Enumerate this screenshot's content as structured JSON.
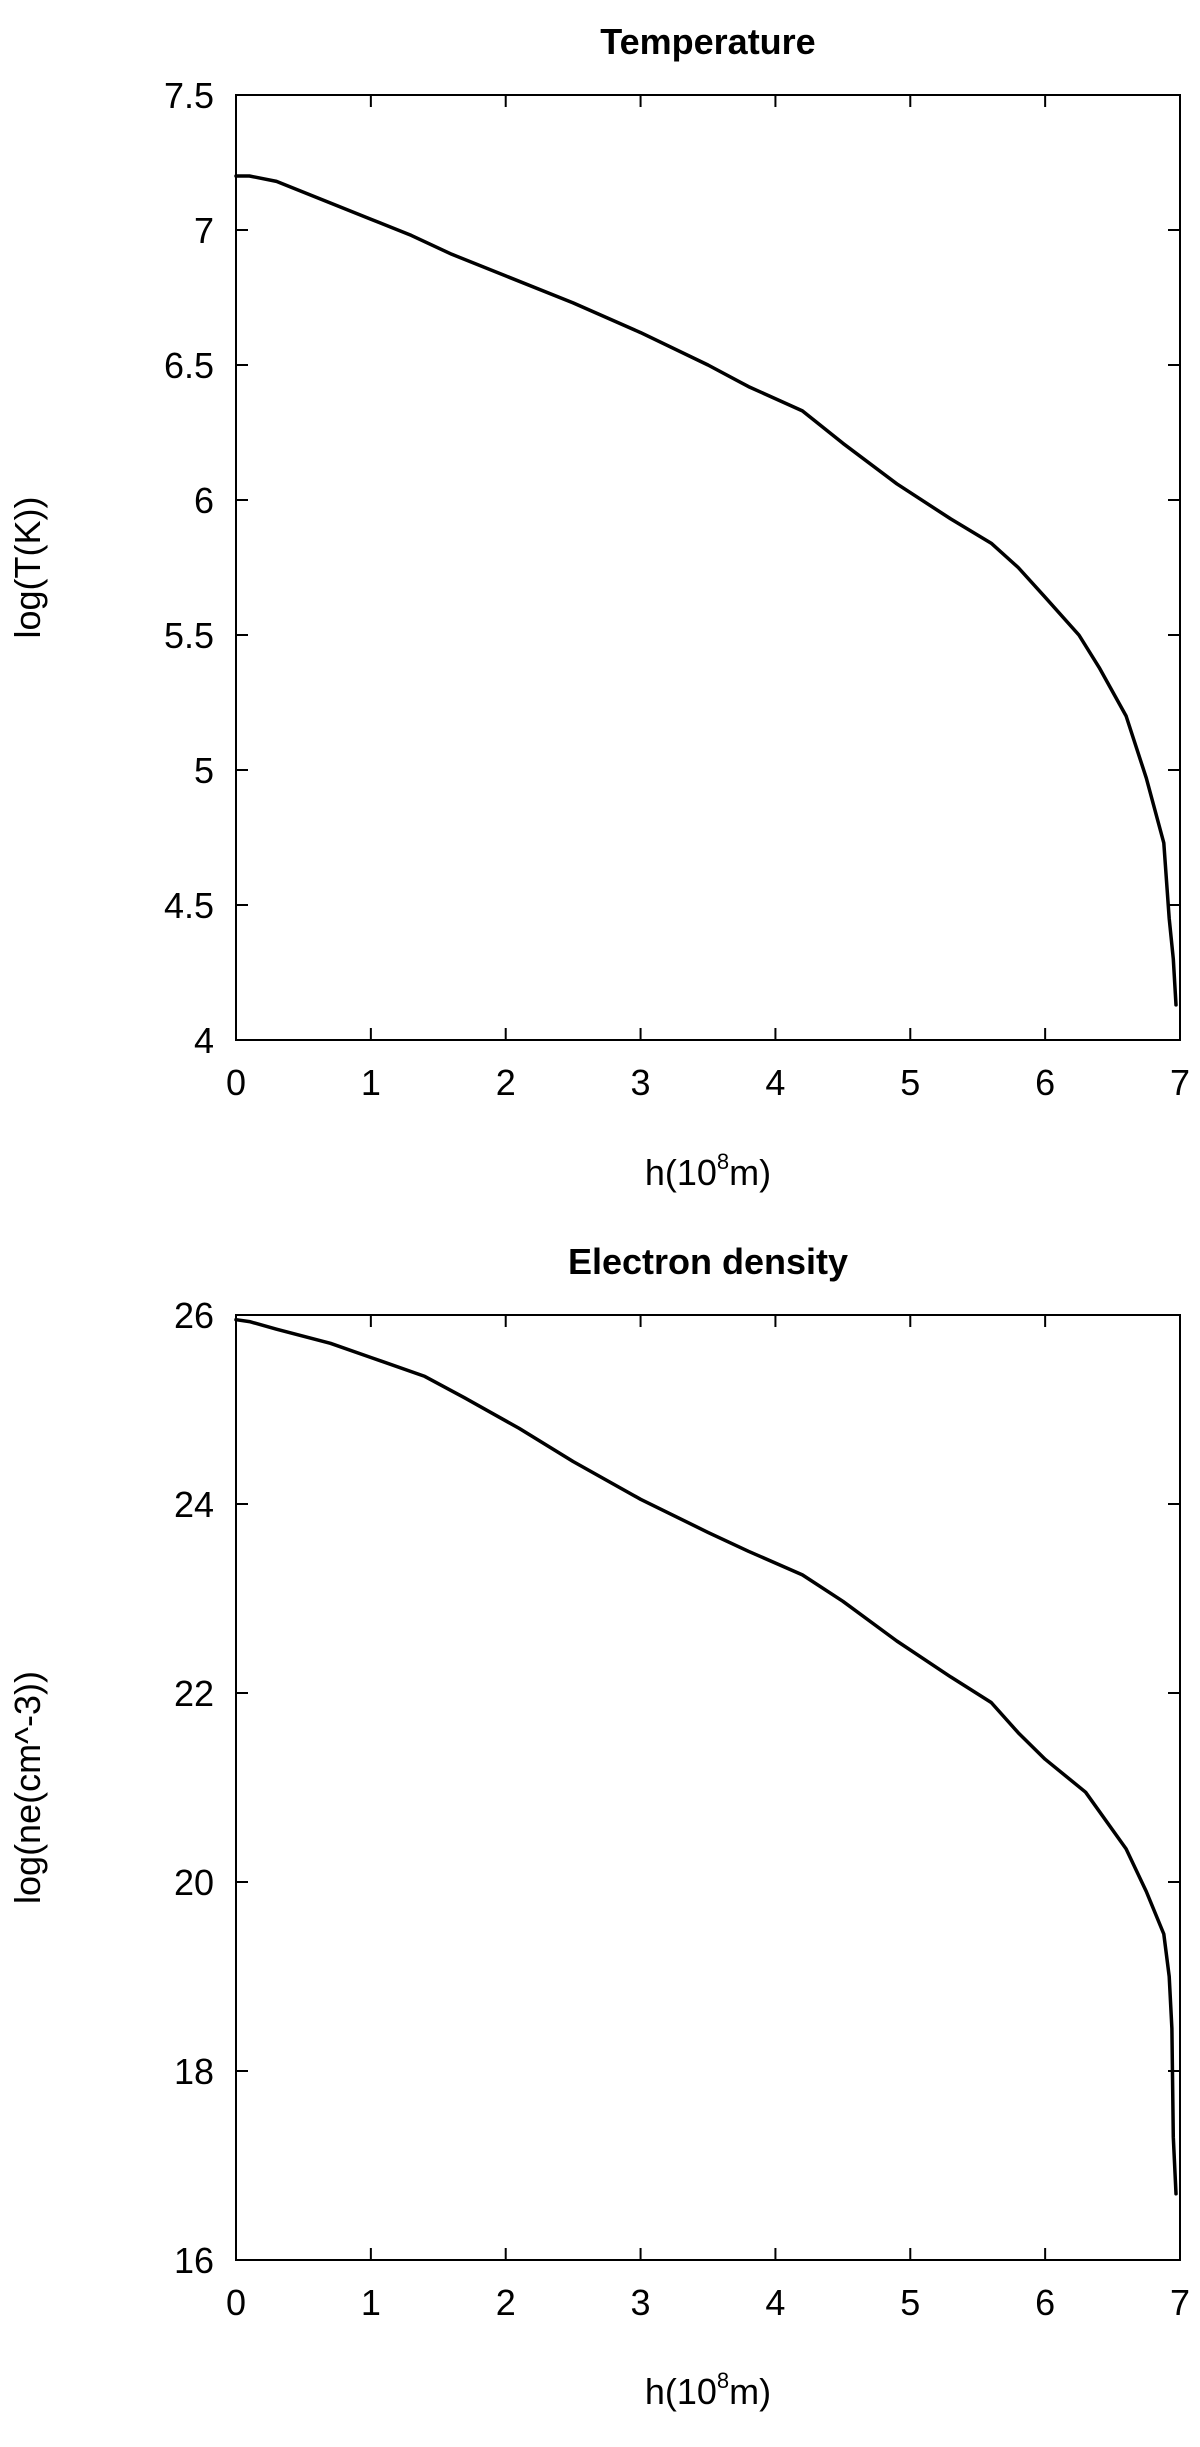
{
  "chart_data": [
    {
      "type": "line",
      "title": "Temperature",
      "xlabel": {
        "prefix": "h(10",
        "superscript": "8",
        "suffix": "m)"
      },
      "ylabel": "log(T(K))",
      "xlim": [
        0,
        7
      ],
      "ylim": [
        4,
        7.5
      ],
      "xticks": [
        "0",
        "1",
        "2",
        "3",
        "4",
        "5",
        "6",
        "7"
      ],
      "yticks": [
        "4",
        "4.5",
        "5",
        "5.5",
        "6",
        "6.5",
        "7",
        "7.5"
      ],
      "grid": false,
      "series": [
        {
          "x": [
            0,
            0.1,
            0.3,
            0.7,
            1.0,
            1.3,
            1.6,
            2.0,
            2.5,
            3.0,
            3.5,
            3.8,
            4.2,
            4.5,
            4.9,
            5.3,
            5.6,
            5.8,
            6.0,
            6.25,
            6.4,
            6.6,
            6.75,
            6.88,
            6.92,
            6.95,
            6.97
          ],
          "y": [
            7.2,
            7.2,
            7.18,
            7.1,
            7.04,
            6.98,
            6.91,
            6.83,
            6.73,
            6.62,
            6.5,
            6.42,
            6.33,
            6.21,
            6.06,
            5.93,
            5.84,
            5.75,
            5.64,
            5.5,
            5.38,
            5.2,
            4.97,
            4.73,
            4.45,
            4.3,
            4.13
          ]
        }
      ]
    },
    {
      "type": "line",
      "title": "Electron density",
      "xlabel": {
        "prefix": "h(10",
        "superscript": "8",
        "suffix": "m)"
      },
      "ylabel": "log(ne(cm^-3))",
      "xlim": [
        0,
        7
      ],
      "ylim": [
        16,
        26
      ],
      "xticks": [
        "0",
        "1",
        "2",
        "3",
        "4",
        "5",
        "6",
        "7"
      ],
      "yticks": [
        "16",
        "18",
        "20",
        "22",
        "24",
        "26"
      ],
      "grid": false,
      "series": [
        {
          "x": [
            0,
            0.1,
            0.3,
            0.7,
            1.0,
            1.4,
            1.7,
            2.1,
            2.5,
            3.0,
            3.5,
            3.8,
            4.2,
            4.5,
            4.9,
            5.3,
            5.6,
            5.8,
            6.0,
            6.3,
            6.6,
            6.75,
            6.88,
            6.92,
            6.94,
            6.95,
            6.97
          ],
          "y": [
            25.95,
            25.93,
            25.85,
            25.7,
            25.55,
            25.35,
            25.12,
            24.8,
            24.45,
            24.05,
            23.7,
            23.5,
            23.25,
            22.97,
            22.55,
            22.17,
            21.9,
            21.58,
            21.3,
            20.95,
            20.35,
            19.9,
            19.45,
            19.0,
            18.45,
            17.3,
            16.7
          ]
        }
      ]
    }
  ]
}
